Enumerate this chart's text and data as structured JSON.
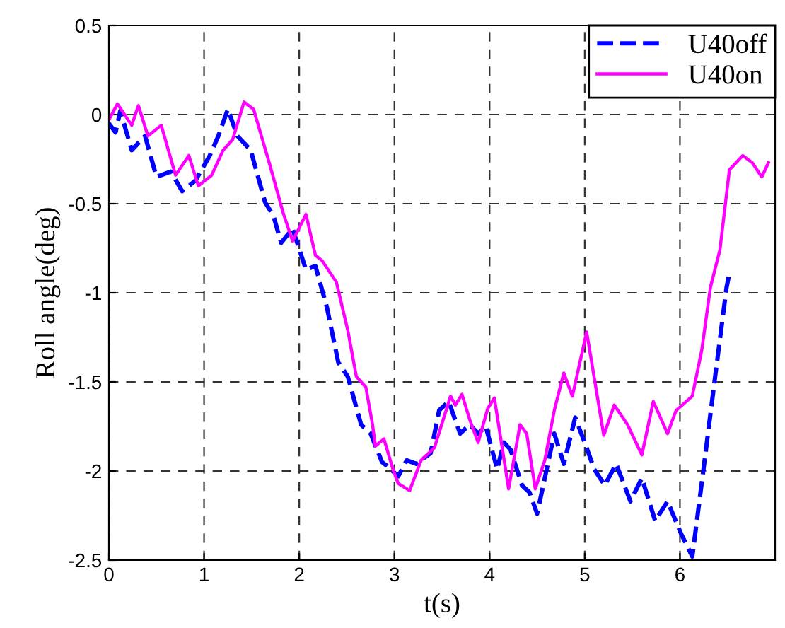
{
  "chart_data": {
    "type": "line",
    "xlabel": "t(s)",
    "ylabel": "Roll angle(deg)",
    "xlim": [
      0,
      7
    ],
    "xticks": [
      0,
      1,
      2,
      3,
      4,
      5,
      6
    ],
    "ylim": [
      -2.5,
      0.5
    ],
    "yticks": [
      -2.5,
      -2,
      -1.5,
      -1,
      -0.5,
      0,
      0.5
    ],
    "grid": true,
    "legend": "top right",
    "series": [
      {
        "name": "U40off",
        "color": "#0000ff",
        "line_style": "dashed",
        "x": [
          0,
          0.07,
          0.12,
          0.24,
          0.38,
          0.5,
          0.65,
          0.77,
          0.91,
          1.06,
          1.15,
          1.25,
          1.35,
          1.49,
          1.64,
          1.73,
          1.81,
          1.93,
          2.07,
          2.17,
          2.29,
          2.41,
          2.51,
          2.65,
          2.75,
          2.87,
          2.92,
          3.04,
          3.13,
          3.23,
          3.38,
          3.47,
          3.57,
          3.69,
          3.79,
          3.88,
          3.96,
          4.08,
          4.15,
          4.22,
          4.34,
          4.42,
          4.5,
          4.68,
          4.78,
          4.9,
          5.02,
          5.1,
          5.21,
          5.33,
          5.48,
          5.6,
          5.74,
          5.87,
          6.01,
          6.13,
          6.25,
          6.37,
          6.49,
          6.52
        ],
        "values": [
          -0.05,
          -0.1,
          0.02,
          -0.2,
          -0.12,
          -0.35,
          -0.32,
          -0.43,
          -0.37,
          -0.23,
          -0.12,
          0.03,
          -0.12,
          -0.2,
          -0.49,
          -0.57,
          -0.72,
          -0.64,
          -0.87,
          -0.85,
          -1.08,
          -1.39,
          -1.47,
          -1.74,
          -1.79,
          -1.95,
          -1.97,
          -2.03,
          -1.94,
          -1.96,
          -1.9,
          -1.66,
          -1.61,
          -1.79,
          -1.74,
          -1.79,
          -1.75,
          -1.99,
          -1.84,
          -1.88,
          -2.08,
          -2.12,
          -2.24,
          -1.79,
          -1.96,
          -1.7,
          -1.87,
          -1.99,
          -2.08,
          -1.96,
          -2.17,
          -2.04,
          -2.28,
          -2.17,
          -2.35,
          -2.48,
          -1.98,
          -1.47,
          -0.97,
          -0.89
        ]
      },
      {
        "name": "U40on",
        "color": "#ff00ff",
        "line_style": "solid",
        "x": [
          0,
          0.09,
          0.24,
          0.31,
          0.41,
          0.55,
          0.7,
          0.84,
          0.94,
          1.08,
          1.2,
          1.3,
          1.42,
          1.52,
          1.69,
          1.83,
          1.93,
          2.07,
          2.17,
          2.24,
          2.39,
          2.51,
          2.6,
          2.7,
          2.77,
          2.8,
          2.89,
          2.99,
          3.04,
          3.16,
          3.28,
          3.42,
          3.59,
          3.64,
          3.71,
          3.79,
          3.88,
          3.98,
          4.05,
          4.2,
          4.32,
          4.39,
          4.48,
          4.58,
          4.68,
          4.78,
          4.87,
          5.02,
          5.2,
          5.31,
          5.45,
          5.6,
          5.72,
          5.87,
          5.96,
          6.13,
          6.23,
          6.32,
          6.42,
          6.52,
          6.66,
          6.76,
          6.86,
          6.93
        ],
        "values": [
          -0.03,
          0.06,
          -0.06,
          0.05,
          -0.12,
          -0.06,
          -0.34,
          -0.23,
          -0.4,
          -0.34,
          -0.2,
          -0.14,
          0.07,
          0.03,
          -0.28,
          -0.55,
          -0.71,
          -0.56,
          -0.79,
          -0.82,
          -0.94,
          -1.21,
          -1.47,
          -1.53,
          -1.74,
          -1.86,
          -1.82,
          -2.0,
          -2.07,
          -2.11,
          -1.94,
          -1.87,
          -1.58,
          -1.63,
          -1.57,
          -1.71,
          -1.84,
          -1.65,
          -1.59,
          -2.1,
          -1.74,
          -1.79,
          -2.1,
          -1.94,
          -1.66,
          -1.45,
          -1.58,
          -1.22,
          -1.8,
          -1.63,
          -1.74,
          -1.91,
          -1.61,
          -1.79,
          -1.66,
          -1.58,
          -1.32,
          -0.97,
          -0.76,
          -0.31,
          -0.23,
          -0.27,
          -0.35,
          -0.27
        ]
      }
    ]
  }
}
